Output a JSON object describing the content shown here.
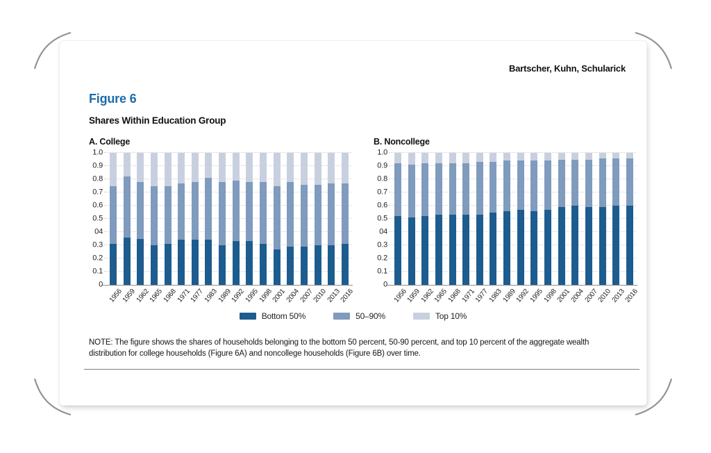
{
  "page": {
    "running_head": "Bartscher, Kuhn, Schularick",
    "figure_label": "Figure 6",
    "figure_title": "Shares Within Education Group",
    "note": "NOTE: The figure shows the shares of households belonging to the bottom 50 percent, 50-90 percent, and top 10 percent of the aggregate wealth distribution for college households (Figure 6A) and noncollege households (Figure 6B) over time.",
    "accent_color": "#1e6ba8"
  },
  "legend": {
    "items": [
      {
        "label": "Bottom 50%",
        "color": "#1d5c8e"
      },
      {
        "label": "50–90%",
        "color": "#7f9bbd"
      },
      {
        "label": "Top 10%",
        "color": "#c8d0e0"
      }
    ]
  },
  "chart_data": [
    {
      "type": "bar",
      "stacked": true,
      "title": "A. College",
      "categories": [
        "1956",
        "1959",
        "1962",
        "1965",
        "1968",
        "1971",
        "1977",
        "1983",
        "1989",
        "1992",
        "1995",
        "1998",
        "2001",
        "2004",
        "2007",
        "2010",
        "2013",
        "2016"
      ],
      "series": [
        {
          "name": "Bottom 50%",
          "color": "#1d5c8e",
          "values": [
            0.31,
            0.36,
            0.35,
            0.3,
            0.31,
            0.34,
            0.34,
            0.34,
            0.3,
            0.33,
            0.33,
            0.31,
            0.27,
            0.29,
            0.29,
            0.3,
            0.3,
            0.31
          ]
        },
        {
          "name": "50–90%",
          "color": "#7f9bbd",
          "values": [
            0.44,
            0.46,
            0.43,
            0.45,
            0.44,
            0.43,
            0.44,
            0.47,
            0.48,
            0.46,
            0.45,
            0.47,
            0.48,
            0.49,
            0.47,
            0.46,
            0.47,
            0.46
          ]
        },
        {
          "name": "Top 10%",
          "color": "#c8d0e0",
          "values": [
            0.25,
            0.18,
            0.22,
            0.25,
            0.25,
            0.23,
            0.22,
            0.19,
            0.22,
            0.21,
            0.22,
            0.22,
            0.25,
            0.22,
            0.24,
            0.24,
            0.23,
            0.23
          ]
        }
      ],
      "ylim": [
        0,
        1
      ],
      "ytick_labels": [
        "1.0",
        "0.9",
        "0.8",
        "0.7",
        "0.6",
        "0.5",
        "04",
        "0.3",
        "0.2",
        "0.1",
        "0"
      ],
      "grid": "horizontal-dotted",
      "legend_position": "below-shared"
    },
    {
      "type": "bar",
      "stacked": true,
      "title": "B. Noncollege",
      "categories": [
        "1956",
        "1959",
        "1962",
        "1965",
        "1968",
        "1971",
        "1977",
        "1983",
        "1989",
        "1992",
        "1995",
        "1998",
        "2001",
        "2004",
        "2007",
        "2010",
        "2013",
        "2016"
      ],
      "series": [
        {
          "name": "Bottom 50%",
          "color": "#1d5c8e",
          "values": [
            0.52,
            0.51,
            0.52,
            0.53,
            0.53,
            0.53,
            0.53,
            0.55,
            0.56,
            0.57,
            0.56,
            0.57,
            0.59,
            0.6,
            0.59,
            0.59,
            0.6,
            0.6
          ]
        },
        {
          "name": "50–90%",
          "color": "#7f9bbd",
          "values": [
            0.4,
            0.4,
            0.4,
            0.39,
            0.39,
            0.39,
            0.4,
            0.38,
            0.38,
            0.37,
            0.38,
            0.37,
            0.36,
            0.35,
            0.36,
            0.37,
            0.36,
            0.36
          ]
        },
        {
          "name": "Top 10%",
          "color": "#c8d0e0",
          "values": [
            0.08,
            0.09,
            0.08,
            0.08,
            0.08,
            0.08,
            0.07,
            0.07,
            0.06,
            0.06,
            0.06,
            0.06,
            0.05,
            0.05,
            0.05,
            0.04,
            0.04,
            0.04
          ]
        }
      ],
      "ylim": [
        0,
        1
      ],
      "ytick_labels": [
        "1.0",
        "0.9",
        "0.8",
        "0.7",
        "0.6",
        "0.5",
        "04",
        "0.3",
        "0.2",
        "0.1",
        "0"
      ],
      "grid": "horizontal-dotted",
      "legend_position": "below-shared"
    }
  ]
}
